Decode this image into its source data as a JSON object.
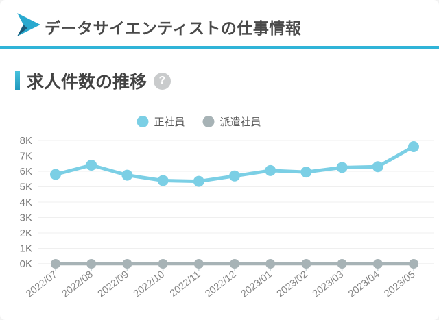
{
  "header": {
    "title": "データサイエンティストの仕事情報",
    "accent_color": "#30b4d8"
  },
  "section": {
    "title": "求人件数の推移",
    "help_glyph": "?"
  },
  "chart_data": {
    "type": "line",
    "title": "求人件数の推移",
    "categories": [
      "2022/07",
      "2022/08",
      "2022/09",
      "2022/10",
      "2022/11",
      "2022/12",
      "2023/01",
      "2023/02",
      "2023/03",
      "2023/04",
      "2023/05"
    ],
    "series": [
      {
        "name": "正社員",
        "color": "#7bcfe5",
        "values": [
          5800,
          6400,
          5750,
          5400,
          5350,
          5700,
          6050,
          5950,
          6250,
          6300,
          7600
        ]
      },
      {
        "name": "派遣社員",
        "color": "#a7b3b6",
        "values": [
          0,
          0,
          0,
          0,
          0,
          0,
          0,
          0,
          0,
          0,
          0
        ]
      }
    ],
    "ytick_labels": [
      "0K",
      "1K",
      "2K",
      "3K",
      "4K",
      "5K",
      "6K",
      "7K",
      "8K"
    ],
    "ylim": [
      0,
      8000
    ],
    "xlabel": "",
    "ylabel": "",
    "grid": true,
    "legend_position": "top-center",
    "x_label_rotation_deg": -38
  },
  "colors": {
    "series_regular": "#7bcfe5",
    "series_dispatch": "#a7b3b6",
    "grid_line": "#efefef",
    "axis_text": "#7b7b7b",
    "tick_mark": "#c9d6d8",
    "header_divider": "#30b4d8",
    "help_circle_bg": "#c9cbcc"
  }
}
